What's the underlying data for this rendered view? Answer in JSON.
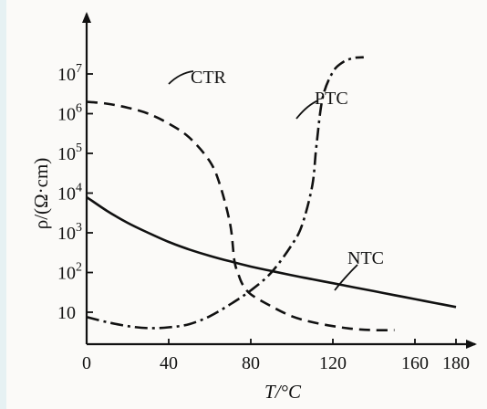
{
  "chart_data": {
    "type": "line",
    "ylabel": "ρ/(Ω·cm)",
    "xlabel": "T/°C",
    "x_ticks": [
      "0",
      "40",
      "80",
      "120",
      "160",
      "180"
    ],
    "x_tick_values": [
      0,
      40,
      80,
      120,
      160,
      180
    ],
    "y_ticks": [
      {
        "base": "10",
        "exp": ""
      },
      {
        "base": "10",
        "exp": "2"
      },
      {
        "base": "10",
        "exp": "3"
      },
      {
        "base": "10",
        "exp": "4"
      },
      {
        "base": "10",
        "exp": "5"
      },
      {
        "base": "10",
        "exp": "6"
      },
      {
        "base": "10",
        "exp": "7"
      }
    ],
    "y_tick_exponents": [
      1,
      2,
      3,
      4,
      5,
      6,
      7
    ],
    "y_scale": "log",
    "xlim": [
      0,
      190
    ],
    "ylim_exponent": [
      0.35,
      8.1
    ],
    "series": [
      {
        "name": "NTC",
        "style": "solid",
        "x": [
          0,
          10,
          20,
          30,
          40,
          50,
          60,
          70,
          80,
          90,
          100,
          110,
          120,
          130,
          140,
          150,
          160,
          170,
          180
        ],
        "log10_y": [
          3.9,
          3.55,
          3.25,
          3.0,
          2.77,
          2.58,
          2.42,
          2.28,
          2.15,
          2.04,
          1.93,
          1.83,
          1.73,
          1.63,
          1.53,
          1.43,
          1.33,
          1.23,
          1.13
        ]
      },
      {
        "name": "PTC",
        "style": "dashdot",
        "x": [
          0,
          10,
          20,
          30,
          40,
          50,
          60,
          70,
          80,
          90,
          100,
          105,
          110,
          112,
          115,
          120,
          125,
          130,
          135
        ],
        "log10_y": [
          0.88,
          0.75,
          0.65,
          0.6,
          0.62,
          0.7,
          0.9,
          1.2,
          1.55,
          2.0,
          2.7,
          3.2,
          4.2,
          5.2,
          6.4,
          7.05,
          7.3,
          7.4,
          7.42
        ]
      },
      {
        "name": "CTR",
        "style": "dashed",
        "x": [
          0,
          10,
          20,
          30,
          40,
          50,
          60,
          65,
          70,
          72,
          74,
          76,
          80,
          90,
          100,
          110,
          120,
          130,
          140,
          150
        ],
        "log10_y": [
          6.3,
          6.25,
          6.15,
          6.0,
          5.75,
          5.4,
          4.8,
          4.2,
          3.2,
          2.3,
          1.95,
          1.7,
          1.45,
          1.15,
          0.9,
          0.75,
          0.65,
          0.58,
          0.55,
          0.55
        ]
      }
    ]
  }
}
